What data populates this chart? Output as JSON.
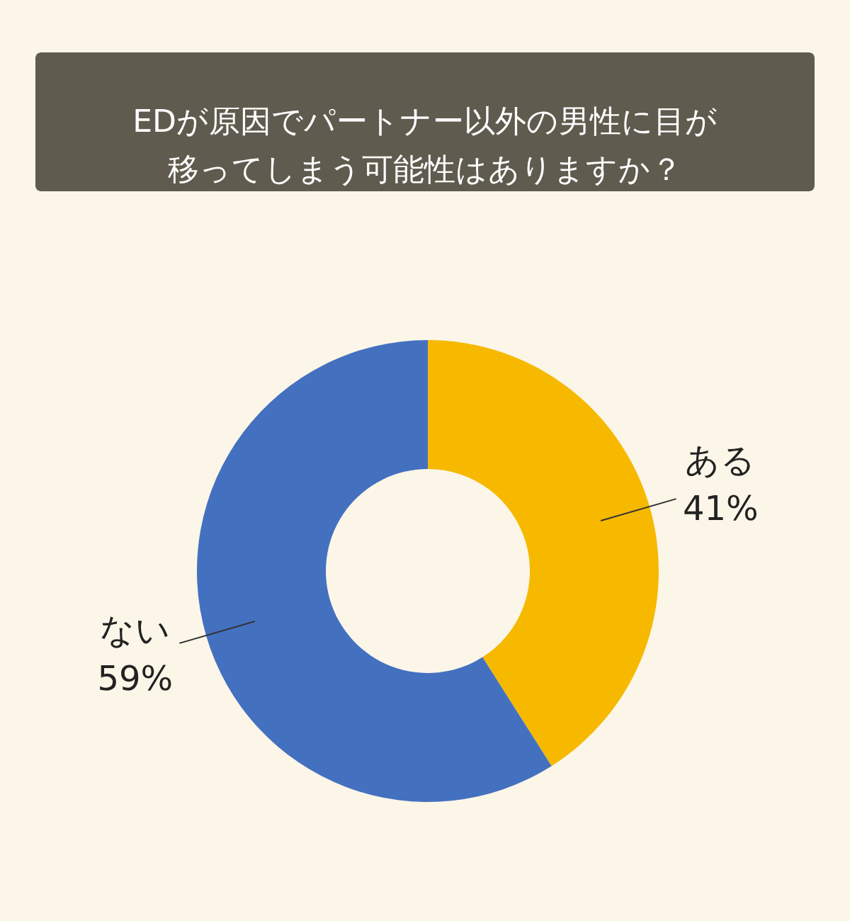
{
  "chart_data": {
    "type": "donut",
    "title": "EDが原因でパートナー以外の男性に目が移ってしまう可能性はありますか？",
    "categories": [
      "ある",
      "ない"
    ],
    "values": [
      41,
      59
    ],
    "colors": [
      "#f6b900",
      "#4470c0"
    ],
    "value_labels": [
      "41%",
      "59%"
    ]
  }
}
